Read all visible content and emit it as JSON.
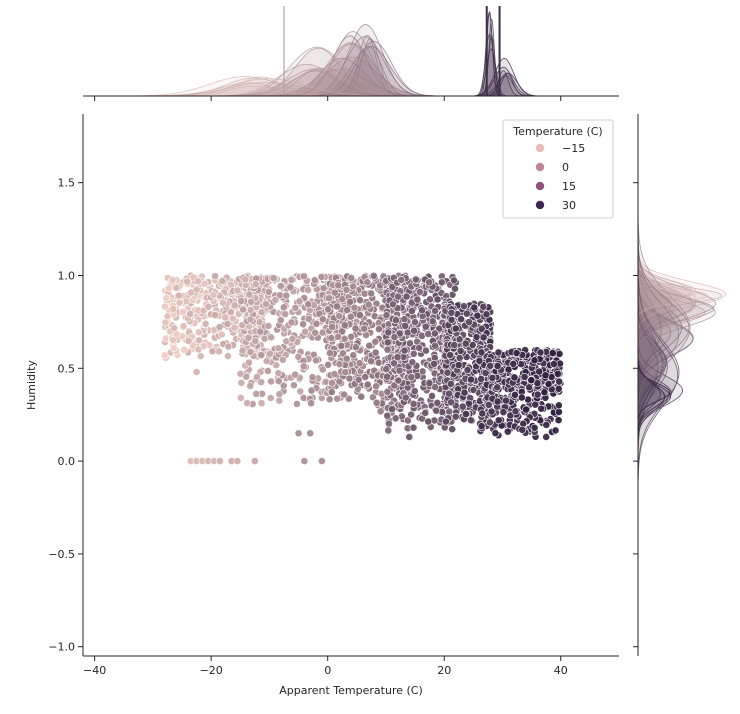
{
  "chart_data": {
    "type": "scatter",
    "title": "",
    "xlabel": "Apparent Temperature (C)",
    "ylabel": "Humidity",
    "xlim": [
      -42,
      50
    ],
    "ylim": [
      -1.05,
      1.87
    ],
    "xticks": [
      -40,
      -20,
      0,
      20,
      40
    ],
    "yticks": [
      -1.0,
      -0.5,
      0.0,
      0.5,
      1.0,
      1.5
    ],
    "xtick_labels": [
      "−40",
      "−20",
      "0",
      "20",
      "40"
    ],
    "ytick_labels": [
      "−1.0",
      "−0.5",
      "0.0",
      "0.5",
      "1.0",
      "1.5"
    ],
    "hue_label": "Temperature (C)",
    "legend": {
      "title": "Temperature (C)",
      "placement": "top-right",
      "entries": [
        {
          "label": "−15",
          "color": "#e8bcb5"
        },
        {
          "label": "0",
          "color": "#c08499"
        },
        {
          "label": "15",
          "color": "#8f527f"
        },
        {
          "label": "30",
          "color": "#3f2550"
        }
      ]
    },
    "colors": {
      "axis": "#262626",
      "cold": "#f2d0c5",
      "hot": "#2d1e3e",
      "point_edge": "#ffffff"
    },
    "point_bands": [
      {
        "x_range": [
          -28,
          -10
        ],
        "y_range": [
          0.55,
          1.0
        ],
        "temp": -12
      },
      {
        "x_range": [
          -15,
          5
        ],
        "y_range": [
          0.3,
          1.0
        ],
        "temp": -3
      },
      {
        "x_range": [
          0,
          15
        ],
        "y_range": [
          0.25,
          1.0
        ],
        "temp": 6
      },
      {
        "x_range": [
          10,
          22
        ],
        "y_range": [
          0.15,
          1.0
        ],
        "temp": 15
      },
      {
        "x_range": [
          20,
          28
        ],
        "y_range": [
          0.2,
          0.85
        ],
        "temp": 24
      },
      {
        "x_range": [
          26,
          40
        ],
        "y_range": [
          0.13,
          0.6
        ],
        "temp": 30
      }
    ],
    "zero_humidity_points": [
      {
        "x": -23.5,
        "y": 0.0,
        "temp": -14
      },
      {
        "x": -22.5,
        "y": 0.0,
        "temp": -13
      },
      {
        "x": -21.5,
        "y": 0.0,
        "temp": -13
      },
      {
        "x": -20.5,
        "y": 0.0,
        "temp": -12
      },
      {
        "x": -19.5,
        "y": 0.0,
        "temp": -12
      },
      {
        "x": -18.5,
        "y": 0.0,
        "temp": -11
      },
      {
        "x": -16.5,
        "y": 0.0,
        "temp": -10
      },
      {
        "x": -15.5,
        "y": 0.0,
        "temp": -10
      },
      {
        "x": -12.5,
        "y": 0.0,
        "temp": -8
      },
      {
        "x": -4,
        "y": 0.0,
        "temp": -1
      },
      {
        "x": -1,
        "y": 0.0,
        "temp": 1
      }
    ],
    "outlier_points": [
      {
        "x": -27.5,
        "y": 0.78,
        "temp": -15
      },
      {
        "x": -26.5,
        "y": 0.82,
        "temp": -14
      },
      {
        "x": -22.5,
        "y": 0.48,
        "temp": -12
      },
      {
        "x": -5,
        "y": 0.15,
        "temp": 0
      },
      {
        "x": -3,
        "y": 0.15,
        "temp": 1
      },
      {
        "x": 14,
        "y": 0.13,
        "temp": 17
      },
      {
        "x": 37.5,
        "y": 0.13,
        "temp": 31
      },
      {
        "x": 39.5,
        "y": 0.47,
        "temp": 33
      }
    ],
    "marginal_x": {
      "description": "stacked KDE per temperature group over apparent temperature",
      "groups": [
        {
          "temp": -12,
          "center": -12,
          "spread": 6,
          "height": 0.25
        },
        {
          "temp": -3,
          "center": -2,
          "spread": 5,
          "height": 0.55
        },
        {
          "temp": 3,
          "center": 3,
          "spread": 4,
          "height": 0.75
        },
        {
          "temp": 8,
          "center": 7,
          "spread": 3,
          "height": 0.8
        },
        {
          "temp": 28,
          "center": 28,
          "spread": 0.8,
          "height": 1.0
        },
        {
          "temp": 31,
          "center": 30.5,
          "spread": 1.5,
          "height": 0.45
        }
      ]
    },
    "marginal_y": {
      "description": "KDE per temperature group over humidity",
      "groups": [
        {
          "temp": -10,
          "center": 0.9,
          "spread": 0.06,
          "height": 1.0
        },
        {
          "temp": 0,
          "center": 0.82,
          "spread": 0.1,
          "height": 0.85
        },
        {
          "temp": 10,
          "center": 0.7,
          "spread": 0.15,
          "height": 0.6
        },
        {
          "temp": 20,
          "center": 0.5,
          "spread": 0.15,
          "height": 0.5
        },
        {
          "temp": 30,
          "center": 0.36,
          "spread": 0.08,
          "height": 0.55
        }
      ]
    }
  }
}
